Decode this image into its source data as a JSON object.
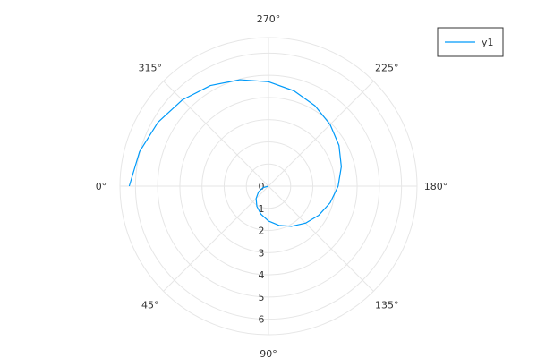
{
  "chart_data": {
    "type": "line",
    "subtype": "polar",
    "angular_direction": "clockwise",
    "angular_zero": "left",
    "angle_tick_labels": [
      "0°",
      "45°",
      "90°",
      "135°",
      "180°",
      "225°",
      "270°",
      "315°"
    ],
    "angle_ticks_deg": [
      0,
      45,
      90,
      135,
      180,
      225,
      270,
      315
    ],
    "radial_ticks": [
      0,
      1,
      2,
      3,
      4,
      5,
      6
    ],
    "radial_tick_labels": [
      "0",
      "1",
      "2",
      "3",
      "4",
      "5",
      "6"
    ],
    "rlim": [
      0,
      6.7
    ],
    "grid": true,
    "legend_position": "top-right",
    "series": [
      {
        "name": "y1",
        "color": "#009af9",
        "theta_deg": [
          0,
          15,
          30,
          45,
          60,
          75,
          90,
          105,
          120,
          135,
          150,
          165,
          180,
          195,
          210,
          225,
          240,
          255,
          270,
          285,
          300,
          315,
          330,
          345,
          360
        ],
        "r": [
          0.0,
          0.26,
          0.52,
          0.79,
          1.05,
          1.31,
          1.57,
          1.83,
          2.09,
          2.36,
          2.62,
          2.88,
          3.14,
          3.4,
          3.67,
          3.93,
          4.19,
          4.45,
          4.71,
          4.97,
          5.24,
          5.5,
          5.76,
          6.02,
          6.28
        ]
      }
    ]
  }
}
